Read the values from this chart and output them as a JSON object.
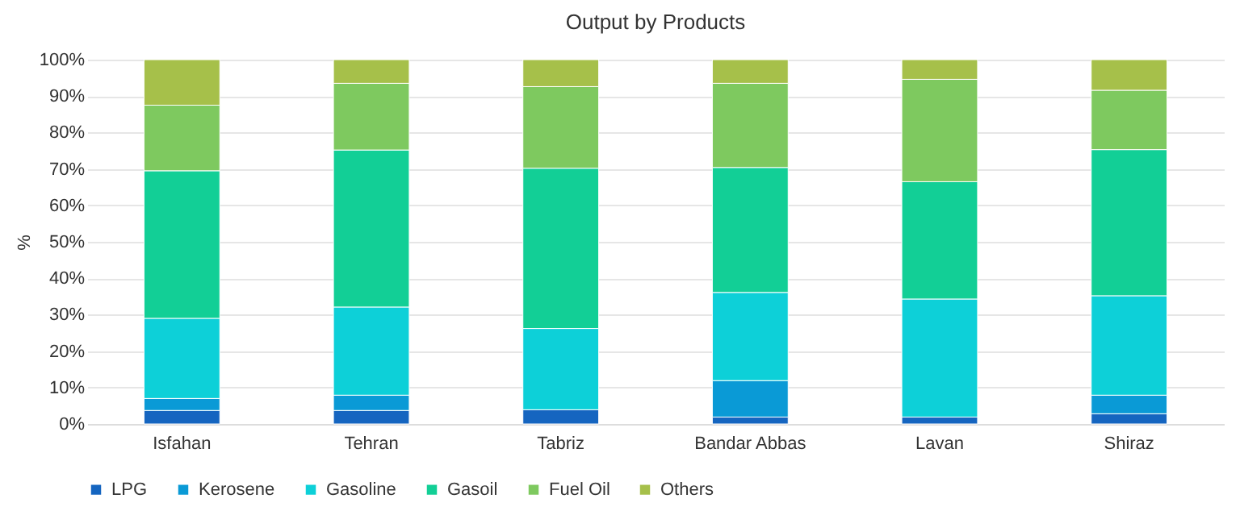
{
  "chart_data": {
    "type": "bar",
    "title": "Output by Products",
    "ylabel": "%",
    "stacked": true,
    "grid": "y",
    "legend": "bottom",
    "categories": [
      "Isfahan",
      "Tehran",
      "Tabriz",
      "Bandar Abbas",
      "Lavan",
      "Shiraz"
    ],
    "ylim": [
      0,
      100
    ],
    "yticks": [
      {
        "value": 0,
        "label": "0%"
      },
      {
        "value": 10,
        "label": "10%"
      },
      {
        "value": 20,
        "label": "20%"
      },
      {
        "value": 30,
        "label": "30%"
      },
      {
        "value": 40,
        "label": "40%"
      },
      {
        "value": 50,
        "label": "50%"
      },
      {
        "value": 60,
        "label": "60%"
      },
      {
        "value": 70,
        "label": "70%"
      },
      {
        "value": 80,
        "label": "80%"
      },
      {
        "value": 90,
        "label": "90%"
      },
      {
        "value": 100,
        "label": "100%"
      }
    ],
    "series": [
      {
        "name": "LPG",
        "color": "#1565c0",
        "values": [
          3.7,
          3.7,
          3.9,
          1.9,
          1.9,
          2.8
        ]
      },
      {
        "name": "Kerosene",
        "color": "#0a9ad6",
        "values": [
          3.3,
          4.2,
          0,
          10,
          0,
          5.1
        ]
      },
      {
        "name": "Gasoline",
        "color": "#0dd0d8",
        "values": [
          22,
          24.2,
          22.3,
          24.2,
          32.4,
          27.3
        ]
      },
      {
        "name": "Gasoil",
        "color": "#12cf96",
        "values": [
          40.5,
          43.1,
          44,
          34.3,
          32.2,
          40.1
        ]
      },
      {
        "name": "Fuel Oil",
        "color": "#7ec95f",
        "values": [
          18,
          18.3,
          22.4,
          23.1,
          28.1,
          16.3
        ]
      },
      {
        "name": "Others",
        "color": "#a6c04a",
        "values": [
          12.5,
          6.5,
          7.4,
          6.5,
          5.4,
          8.4
        ]
      }
    ]
  }
}
